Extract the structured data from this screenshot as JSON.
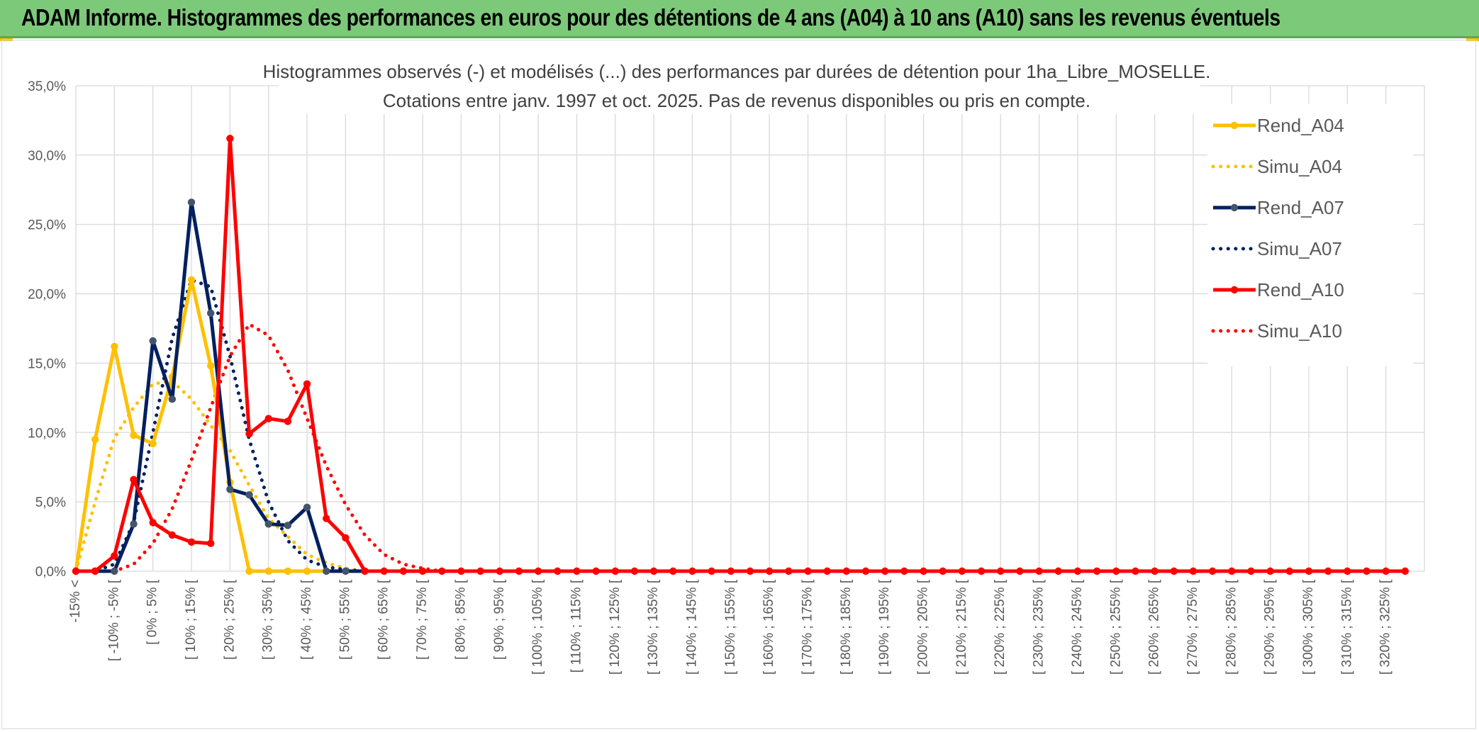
{
  "banner": {
    "title": "ADAM Informe. Histogrammes des performances en euros pour des détentions de 4 ans (A04) à 10 ans (A10) sans les revenus éventuels"
  },
  "colors": {
    "banner_bg": "#7dc97a",
    "a04": "#ffc000",
    "a07": "#002060",
    "a07_marker": "#44546a",
    "a10": "#ff0000",
    "grid": "#d9d9d9"
  },
  "chart_data": {
    "type": "line",
    "title": "Histogrammes observés (-) et modélisés (...) des performances par durées de détention pour 1ha_Libre_MOSELLE.",
    "subtitle": "Cotations entre janv. 1997 et oct. 2025. Pas de revenus disponibles ou pris en compte.",
    "ylim": [
      0,
      0.35
    ],
    "y_ticks": [
      "0,0%",
      "5,0%",
      "10,0%",
      "15,0%",
      "20,0%",
      "25,0%",
      "30,0%",
      "35,0%"
    ],
    "grid": true,
    "legend_position": "right",
    "x_labels": [
      "-15% <",
      "[ -10% ; -5% [",
      "[ 0% ; 5% [",
      "[ 10% ; 15% [",
      "[ 20% ; 25% [",
      "[ 30% ; 35% [",
      "[ 40% ; 45% [",
      "[ 50% ; 55% [",
      "[ 60% ; 65% [",
      "[ 70% ; 75% [",
      "[ 80% ; 85% [",
      "[ 90% ; 95% [",
      "[ 100% ; 105% [",
      "[ 110% ; 115% [",
      "[ 120% ; 125% [",
      "[ 130% ; 135% [",
      "[ 140% ; 145% [",
      "[ 150% ; 155% [",
      "[ 160% ; 165% [",
      "[ 170% ; 175% [",
      "[ 180% ; 185% [",
      "[ 190% ; 195% [",
      "[ 200% ; 205% [",
      "[ 210% ; 215% [",
      "[ 220% ; 225% [",
      "[ 230% ; 235% [",
      "[ 240% ; 245% [",
      "[ 250% ; 255% [",
      "[ 260% ; 265% [",
      "[ 270% ; 275% [",
      "[ 280% ; 285% [",
      "[ 290% ; 295% [",
      "[ 300% ; 305% [",
      "[ 310% ; 315% [",
      "[ 320% ; 325% ["
    ],
    "series": [
      {
        "name": "Rend_A04",
        "style": "solid",
        "markers": true,
        "color": "#ffc000",
        "values": [
          0.0,
          0.095,
          0.162,
          0.098,
          0.092,
          0.14,
          0.21,
          0.148,
          0.064,
          0.0,
          0.0,
          0.0,
          0.0,
          0.0,
          0.0
        ]
      },
      {
        "name": "Simu_A04",
        "style": "dotted",
        "markers": false,
        "color": "#ffc000",
        "values": [
          0.0,
          0.05,
          0.096,
          0.118,
          0.135,
          0.137,
          0.124,
          0.105,
          0.087,
          0.062,
          0.038,
          0.025,
          0.012,
          0.006,
          0.002,
          0.0,
          0.0
        ]
      },
      {
        "name": "Rend_A07",
        "style": "solid",
        "markers": true,
        "color": "#002060",
        "values": [
          0.0,
          0.0,
          0.0,
          0.034,
          0.166,
          0.124,
          0.266,
          0.186,
          0.059,
          0.055,
          0.034,
          0.033,
          0.046,
          0.0,
          0.0,
          0.0
        ]
      },
      {
        "name": "Simu_A07",
        "style": "dotted",
        "markers": false,
        "color": "#002060",
        "values": [
          0.0,
          0.0,
          0.005,
          0.035,
          0.1,
          0.168,
          0.21,
          0.205,
          0.155,
          0.095,
          0.05,
          0.022,
          0.008,
          0.003,
          0.001,
          0.0,
          0.0
        ]
      },
      {
        "name": "Rend_A10",
        "style": "solid",
        "markers": true,
        "color": "#ff0000",
        "values": [
          0.0,
          0.0,
          0.011,
          0.066,
          0.035,
          0.026,
          0.021,
          0.02,
          0.312,
          0.099,
          0.11,
          0.108,
          0.135,
          0.038,
          0.024,
          0.0,
          0.0,
          0.0,
          0.0,
          0.0,
          0.0,
          0.0,
          0.0,
          0.0,
          0.0,
          0.0,
          0.0,
          0.0,
          0.0,
          0.0,
          0.0,
          0.0,
          0.0,
          0.0,
          0.0,
          0.0,
          0.0,
          0.0,
          0.0,
          0.0,
          0.0,
          0.0,
          0.0,
          0.0,
          0.0,
          0.0,
          0.0,
          0.0,
          0.0,
          0.0,
          0.0,
          0.0,
          0.0,
          0.0,
          0.0,
          0.0,
          0.0,
          0.0,
          0.0,
          0.0,
          0.0,
          0.0,
          0.0,
          0.0,
          0.0,
          0.0,
          0.0,
          0.0,
          0.0,
          0.0
        ]
      },
      {
        "name": "Simu_A10",
        "style": "dotted",
        "markers": false,
        "color": "#ff0000",
        "values": [
          0.0,
          0.0,
          0.0,
          0.005,
          0.02,
          0.045,
          0.08,
          0.118,
          0.155,
          0.178,
          0.17,
          0.145,
          0.11,
          0.076,
          0.048,
          0.026,
          0.012,
          0.005,
          0.002,
          0.0
        ]
      }
    ]
  }
}
